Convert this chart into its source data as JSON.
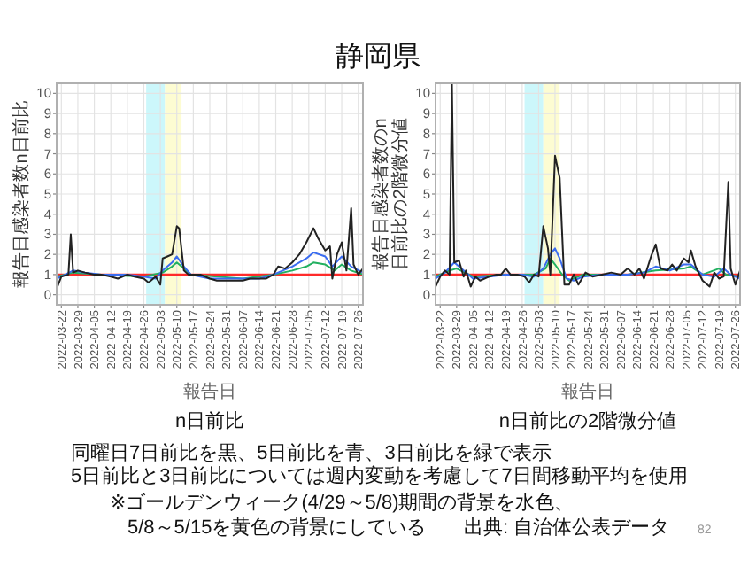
{
  "chart_data": [
    {
      "type": "line",
      "title": "静岡県",
      "subtitle": "n日前比",
      "xlabel": "報告日",
      "ylabel": "報告日感染者数n日前比",
      "xlim": [
        "2022-03-20",
        "2022-07-28"
      ],
      "ylim": [
        -0.5,
        10.5
      ],
      "xticks": [
        "2022-03-22",
        "2022-03-29",
        "2022-04-05",
        "2022-04-12",
        "2022-04-19",
        "2022-04-26",
        "2022-05-03",
        "2022-05-10",
        "2022-05-17",
        "2022-05-24",
        "2022-05-31",
        "2022-06-07",
        "2022-06-14",
        "2022-06-21",
        "2022-06-28",
        "2022-07-05",
        "2022-07-12",
        "2022-07-19",
        "2022-07-26"
      ],
      "yticks": [
        0,
        1,
        2,
        3,
        4,
        5,
        6,
        7,
        8,
        9,
        10
      ],
      "grid": true,
      "bands": [
        {
          "axis": "x",
          "from": "2022-04-27",
          "to": "2022-05-05",
          "color": "#ccf7fb"
        },
        {
          "axis": "x",
          "from": "2022-05-05",
          "to": "2022-05-12",
          "color": "#fdfcd2"
        }
      ],
      "ref_lines": [
        {
          "axis": "y",
          "value": 1,
          "color": "#ff2a2a"
        }
      ],
      "series": [
        {
          "color": "#22b060",
          "x": [
            "2022-03-20",
            "2022-03-27",
            "2022-04-08",
            "2022-04-26",
            "2022-05-04",
            "2022-05-08",
            "2022-05-10",
            "2022-05-13",
            "2022-05-16",
            "2022-06-07",
            "2022-06-20",
            "2022-06-28",
            "2022-07-04",
            "2022-07-07",
            "2022-07-12",
            "2022-07-16",
            "2022-07-19",
            "2022-07-23",
            "2022-07-28"
          ],
          "values": [
            0.9,
            1.1,
            1.0,
            0.9,
            1.1,
            1.4,
            1.6,
            1.3,
            1.0,
            0.8,
            1.0,
            1.2,
            1.4,
            1.6,
            1.5,
            1.2,
            1.5,
            1.2,
            1.0
          ]
        },
        {
          "color": "#3a6cf0",
          "x": [
            "2022-03-20",
            "2022-03-22",
            "2022-03-27",
            "2022-04-01",
            "2022-04-08",
            "2022-04-19",
            "2022-04-26",
            "2022-05-01",
            "2022-05-04",
            "2022-05-08",
            "2022-05-10",
            "2022-05-13",
            "2022-05-16",
            "2022-05-24",
            "2022-06-07",
            "2022-06-14",
            "2022-06-20",
            "2022-06-28",
            "2022-07-04",
            "2022-07-07",
            "2022-07-12",
            "2022-07-15",
            "2022-07-19",
            "2022-07-23",
            "2022-07-28"
          ],
          "values": [
            0.8,
            0.9,
            1.2,
            1.1,
            1.0,
            1.0,
            0.9,
            0.8,
            1.2,
            1.6,
            1.9,
            1.4,
            1.0,
            0.8,
            0.8,
            0.8,
            1.0,
            1.4,
            1.8,
            2.1,
            1.9,
            1.4,
            1.9,
            1.4,
            1.1
          ]
        },
        {
          "color": "#222222",
          "x": [
            "2022-03-20",
            "2022-03-22",
            "2022-03-25",
            "2022-03-26",
            "2022-03-27",
            "2022-03-29",
            "2022-04-01",
            "2022-04-05",
            "2022-04-08",
            "2022-04-12",
            "2022-04-15",
            "2022-04-19",
            "2022-04-22",
            "2022-04-26",
            "2022-04-28",
            "2022-05-01",
            "2022-05-03",
            "2022-05-04",
            "2022-05-06",
            "2022-05-08",
            "2022-05-10",
            "2022-05-11",
            "2022-05-13",
            "2022-05-15",
            "2022-05-17",
            "2022-05-20",
            "2022-05-24",
            "2022-05-27",
            "2022-05-31",
            "2022-06-03",
            "2022-06-07",
            "2022-06-10",
            "2022-06-14",
            "2022-06-17",
            "2022-06-20",
            "2022-06-22",
            "2022-06-25",
            "2022-06-28",
            "2022-07-01",
            "2022-07-04",
            "2022-07-07",
            "2022-07-09",
            "2022-07-12",
            "2022-07-14",
            "2022-07-15",
            "2022-07-17",
            "2022-07-19",
            "2022-07-21",
            "2022-07-23",
            "2022-07-24",
            "2022-07-26",
            "2022-07-28"
          ],
          "values": [
            0.3,
            0.9,
            1.0,
            3.0,
            1.1,
            1.2,
            1.1,
            1.0,
            1.0,
            0.9,
            0.8,
            1.0,
            0.9,
            0.8,
            0.6,
            0.9,
            0.5,
            1.8,
            1.9,
            2.0,
            3.4,
            3.3,
            1.2,
            1.0,
            1.0,
            1.0,
            0.8,
            0.7,
            0.7,
            0.7,
            0.7,
            0.8,
            0.8,
            0.8,
            1.0,
            1.4,
            1.3,
            1.6,
            2.0,
            2.6,
            3.3,
            2.8,
            2.2,
            2.4,
            0.8,
            2.0,
            2.6,
            1.2,
            4.3,
            1.5,
            1.0,
            1.3
          ]
        }
      ],
      "annotations": [
        "同曜日7日前比を黒、5日前比を青、3日前比を緑で表示",
        "5日前比と3日前比については週内変動を考慮して7日間移動平均を使用",
        "※ゴールデンウィーク(4/29～5/8)期間の背景を水色、",
        "5/8～5/15を黄色の背景にしている",
        "出典: 自治体公表データ",
        "82"
      ]
    },
    {
      "type": "line",
      "subtitle": "n日前比の2階微分値",
      "xlabel": "報告日",
      "ylabel": "報告日感染者数のn日前比の2階微分値",
      "xlim": [
        "2022-03-20",
        "2022-07-28"
      ],
      "ylim": [
        -0.5,
        10.5
      ],
      "xticks": [
        "2022-03-22",
        "2022-03-29",
        "2022-04-05",
        "2022-04-12",
        "2022-04-19",
        "2022-04-26",
        "2022-05-03",
        "2022-05-10",
        "2022-05-17",
        "2022-05-24",
        "2022-05-31",
        "2022-06-07",
        "2022-06-14",
        "2022-06-21",
        "2022-06-28",
        "2022-07-05",
        "2022-07-12",
        "2022-07-19",
        "2022-07-26"
      ],
      "yticks": [
        0,
        1,
        2,
        3,
        4,
        5,
        6,
        7,
        8,
        9,
        10
      ],
      "grid": true,
      "bands": [
        {
          "axis": "x",
          "from": "2022-04-27",
          "to": "2022-05-05",
          "color": "#ccf7fb"
        },
        {
          "axis": "x",
          "from": "2022-05-05",
          "to": "2022-05-12",
          "color": "#fdfcd2"
        }
      ],
      "ref_lines": [
        {
          "axis": "y",
          "value": 1,
          "color": "#ff2a2a"
        }
      ],
      "series": [
        {
          "color": "#22b060",
          "x": [
            "2022-03-20",
            "2022-03-26",
            "2022-03-29",
            "2022-04-05",
            "2022-04-19",
            "2022-05-01",
            "2022-05-06",
            "2022-05-08",
            "2022-05-10",
            "2022-05-13",
            "2022-05-16",
            "2022-05-22",
            "2022-06-10",
            "2022-06-22",
            "2022-07-04",
            "2022-07-07",
            "2022-07-12",
            "2022-07-19",
            "2022-07-22",
            "2022-07-28"
          ],
          "values": [
            0.9,
            1.2,
            1.3,
            0.9,
            1.0,
            1.0,
            1.3,
            1.8,
            1.5,
            1.0,
            0.7,
            1.0,
            1.0,
            1.2,
            1.3,
            1.4,
            1.0,
            1.3,
            1.0,
            0.9
          ]
        },
        {
          "color": "#3a6cf0",
          "x": [
            "2022-03-20",
            "2022-03-24",
            "2022-03-28",
            "2022-04-01",
            "2022-04-05",
            "2022-04-12",
            "2022-04-19",
            "2022-04-26",
            "2022-05-01",
            "2022-05-05",
            "2022-05-08",
            "2022-05-10",
            "2022-05-12",
            "2022-05-15",
            "2022-05-18",
            "2022-05-22",
            "2022-05-30",
            "2022-06-10",
            "2022-06-17",
            "2022-06-22",
            "2022-06-28",
            "2022-07-04",
            "2022-07-07",
            "2022-07-12",
            "2022-07-17",
            "2022-07-21",
            "2022-07-24",
            "2022-07-28"
          ],
          "values": [
            0.8,
            1.1,
            1.6,
            1.2,
            0.8,
            0.9,
            1.0,
            1.0,
            0.9,
            1.3,
            2.0,
            2.3,
            1.8,
            0.8,
            0.7,
            0.9,
            1.0,
            1.0,
            1.1,
            1.4,
            1.2,
            1.5,
            1.5,
            1.0,
            0.9,
            1.3,
            1.0,
            0.8
          ]
        },
        {
          "color": "#222222",
          "x": [
            "2022-03-20",
            "2022-03-22",
            "2022-03-24",
            "2022-03-26",
            "2022-03-27",
            "2022-03-28",
            "2022-03-30",
            "2022-04-01",
            "2022-04-02",
            "2022-04-04",
            "2022-04-06",
            "2022-04-08",
            "2022-04-12",
            "2022-04-15",
            "2022-04-17",
            "2022-04-19",
            "2022-04-21",
            "2022-04-24",
            "2022-04-27",
            "2022-04-29",
            "2022-05-01",
            "2022-05-03",
            "2022-05-05",
            "2022-05-07",
            "2022-05-08",
            "2022-05-10",
            "2022-05-12",
            "2022-05-14",
            "2022-05-16",
            "2022-05-18",
            "2022-05-20",
            "2022-05-23",
            "2022-05-26",
            "2022-05-30",
            "2022-06-03",
            "2022-06-07",
            "2022-06-10",
            "2022-06-13",
            "2022-06-15",
            "2022-06-17",
            "2022-06-20",
            "2022-06-22",
            "2022-06-24",
            "2022-06-27",
            "2022-06-29",
            "2022-07-01",
            "2022-07-04",
            "2022-07-06",
            "2022-07-07",
            "2022-07-09",
            "2022-07-12",
            "2022-07-15",
            "2022-07-17",
            "2022-07-19",
            "2022-07-21",
            "2022-07-23",
            "2022-07-24",
            "2022-07-26",
            "2022-07-28"
          ],
          "values": [
            0.4,
            0.9,
            1.2,
            1.0,
            10.5,
            1.6,
            1.7,
            0.9,
            1.2,
            0.4,
            0.9,
            0.7,
            0.9,
            1.0,
            1.0,
            1.3,
            1.0,
            1.0,
            0.9,
            0.6,
            1.0,
            0.9,
            3.4,
            2.3,
            1.0,
            6.9,
            5.8,
            0.5,
            0.5,
            1.0,
            0.5,
            1.1,
            0.9,
            1.0,
            1.1,
            1.0,
            1.3,
            1.0,
            1.3,
            0.8,
            1.9,
            2.5,
            1.3,
            1.2,
            1.5,
            1.2,
            1.8,
            1.6,
            2.2,
            1.4,
            0.7,
            0.4,
            1.1,
            0.8,
            0.9,
            5.6,
            1.3,
            0.5,
            1.2
          ]
        }
      ]
    }
  ]
}
